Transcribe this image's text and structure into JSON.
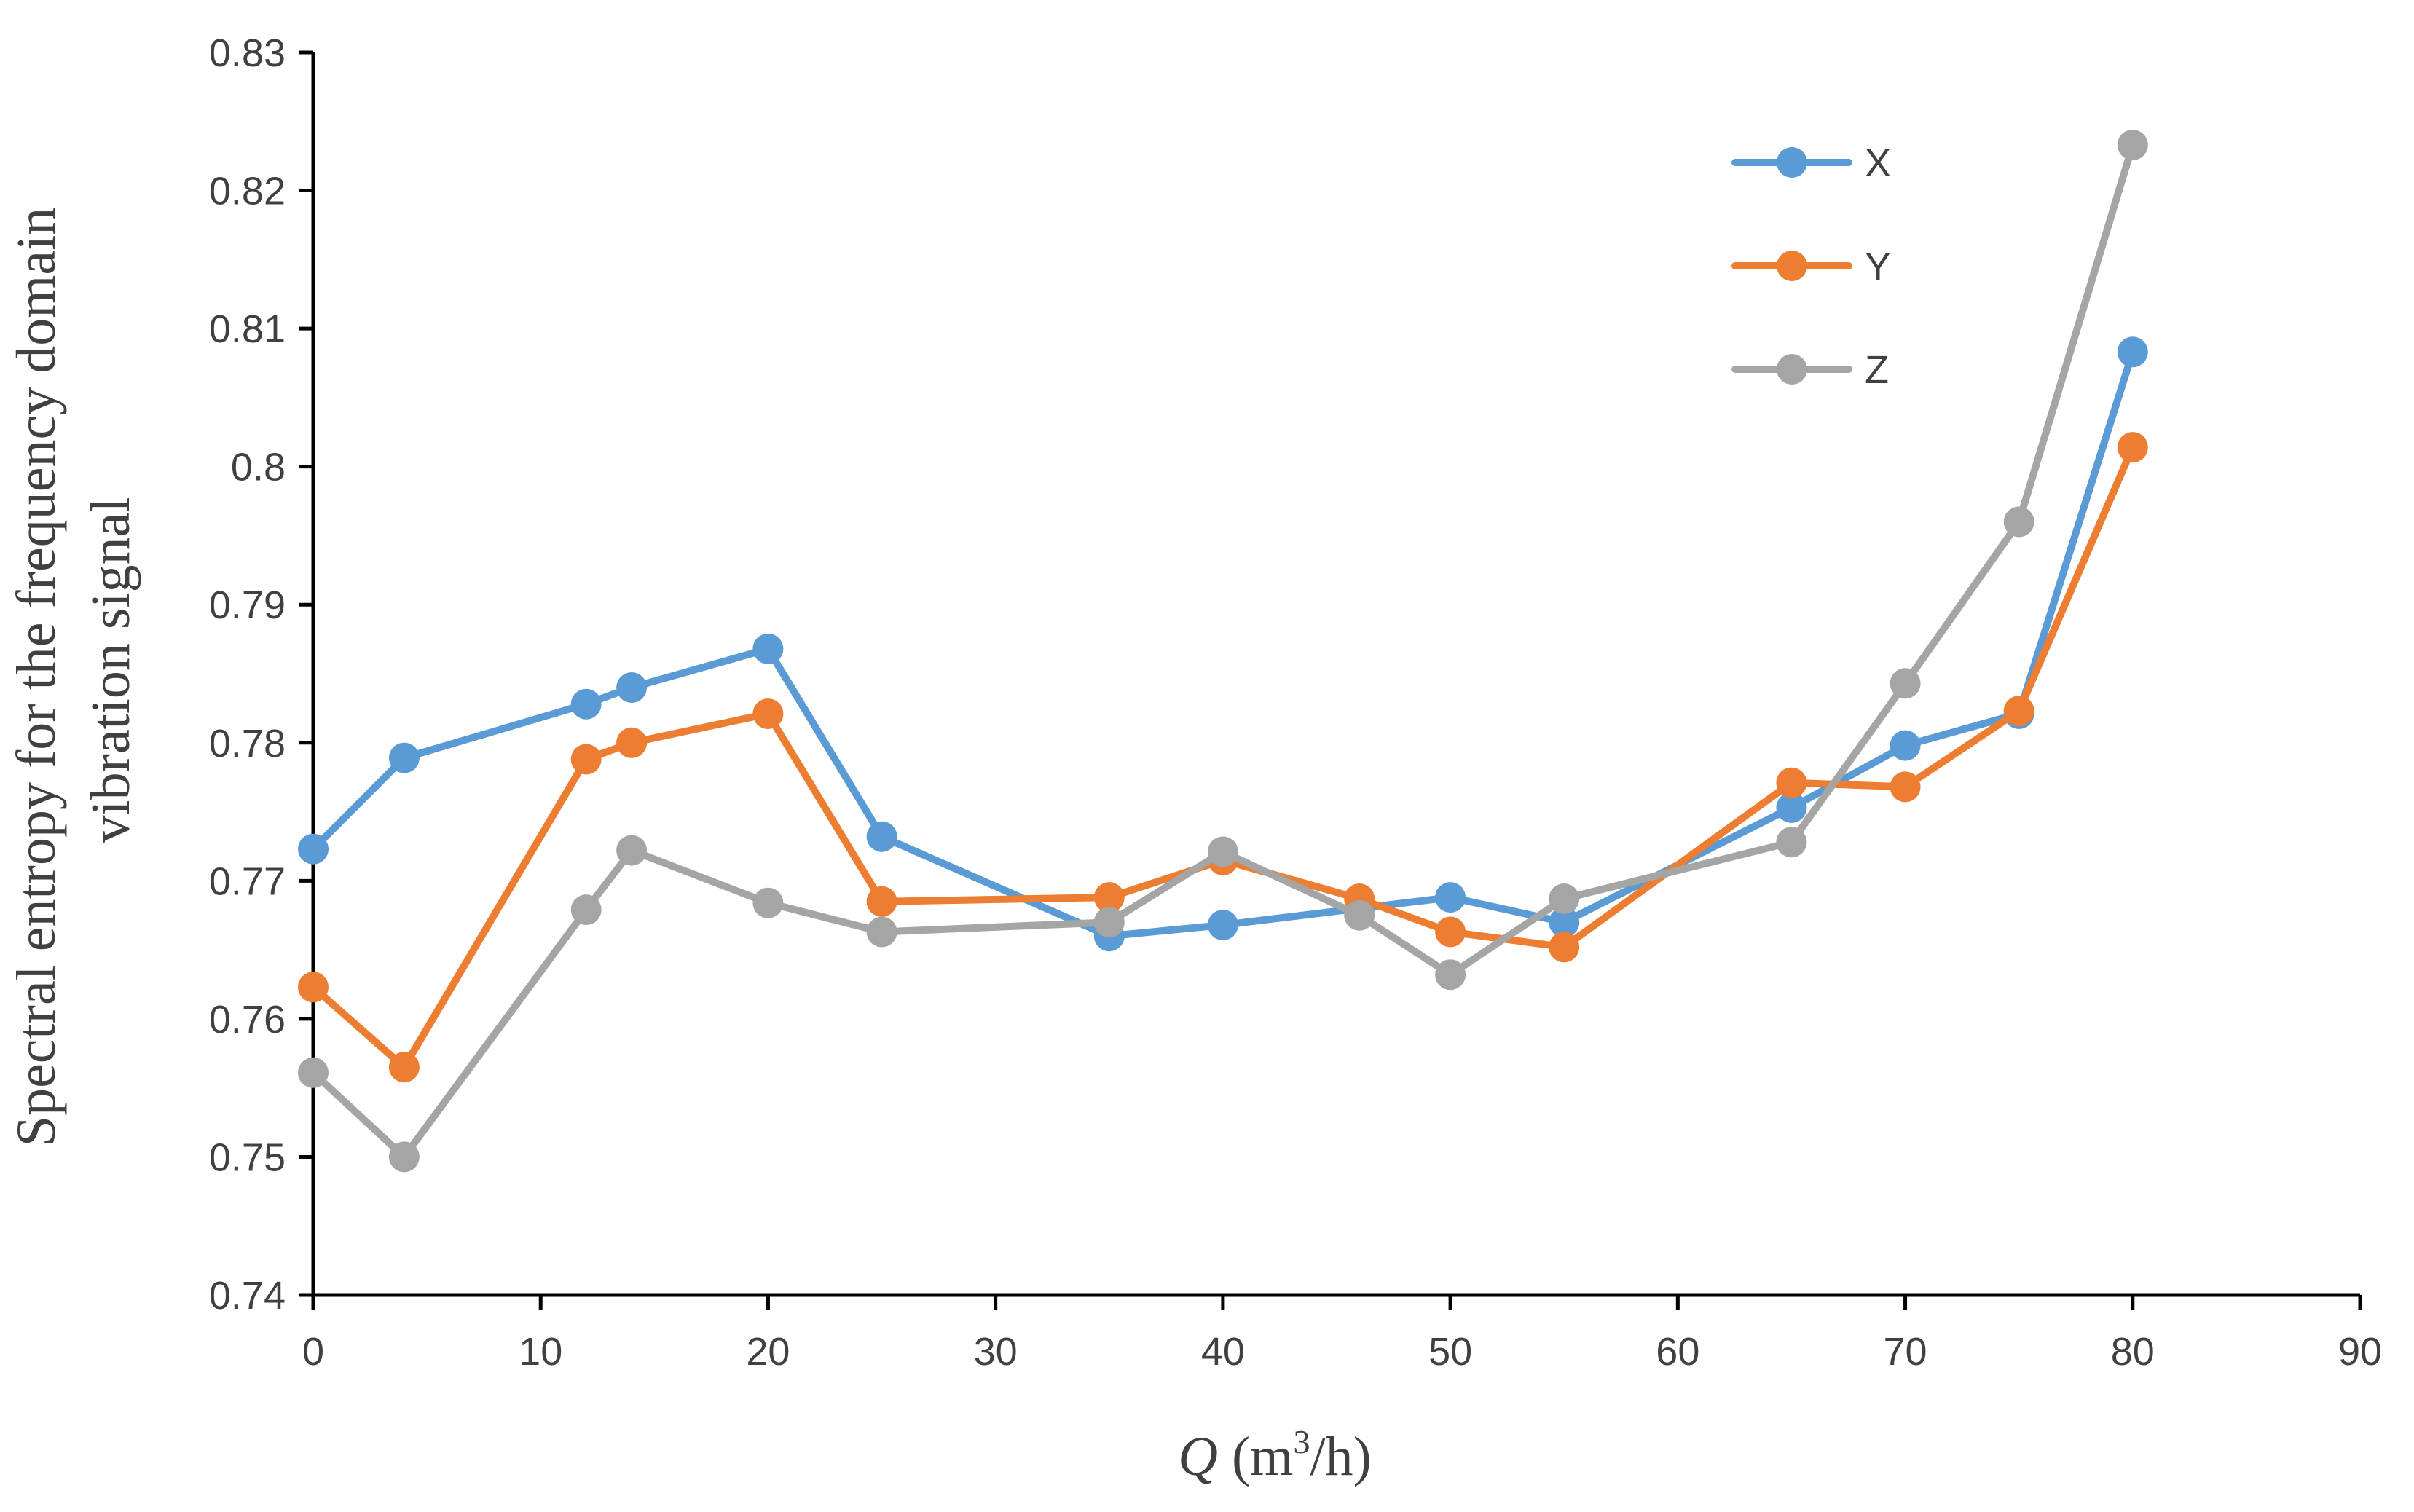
{
  "chart_data": {
    "type": "line",
    "title": "",
    "xlabel": {
      "variable": "Q",
      "unit_open": " (m",
      "unit_sup": "3",
      "unit_close": "/h)"
    },
    "ylabel": {
      "line1": "Spectral entropy for the frequency domain",
      "line2": "vibration signal"
    },
    "xlim": [
      0,
      90
    ],
    "ylim": [
      0.74,
      0.83
    ],
    "xticks": [
      0,
      10,
      20,
      30,
      40,
      50,
      60,
      70,
      80,
      90
    ],
    "xtick_labels": [
      "0",
      "10",
      "20",
      "30",
      "40",
      "50",
      "60",
      "70",
      "80",
      "90"
    ],
    "yticks": [
      0.74,
      0.75,
      0.76,
      0.77,
      0.78,
      0.79,
      0.8,
      0.81,
      0.82,
      0.83
    ],
    "ytick_labels": [
      "0.74",
      "0.75",
      "0.76",
      "0.77",
      "0.78",
      "0.79",
      "0.8",
      "0.81",
      "0.82",
      "0.83"
    ],
    "grid": false,
    "legend_position": "top-right",
    "x": [
      0,
      4,
      12,
      14,
      20,
      25,
      35,
      40,
      46,
      50,
      55,
      65,
      70,
      75,
      80
    ],
    "series": [
      {
        "name": "X",
        "color": "#5B9BD5",
        "values": [
          0.7723,
          0.7789,
          0.7828,
          0.784,
          0.7868,
          0.7732,
          0.766,
          0.7668,
          0.768,
          0.7688,
          0.767,
          0.7753,
          0.7798,
          0.7821,
          0.8083
        ]
      },
      {
        "name": "Y",
        "color": "#ED7D31",
        "values": [
          0.7623,
          0.7565,
          0.7788,
          0.78,
          0.7821,
          0.7685,
          0.7688,
          0.7715,
          0.7687,
          0.7663,
          0.7652,
          0.7771,
          0.7768,
          0.7823,
          0.8014
        ]
      },
      {
        "name": "Z",
        "color": "#A5A5A5",
        "values": [
          0.7561,
          0.75,
          0.7679,
          0.7722,
          0.7684,
          0.7663,
          0.767,
          0.7721,
          0.7675,
          0.7632,
          0.7687,
          0.7728,
          0.7843,
          0.796,
          0.8233
        ]
      }
    ]
  }
}
